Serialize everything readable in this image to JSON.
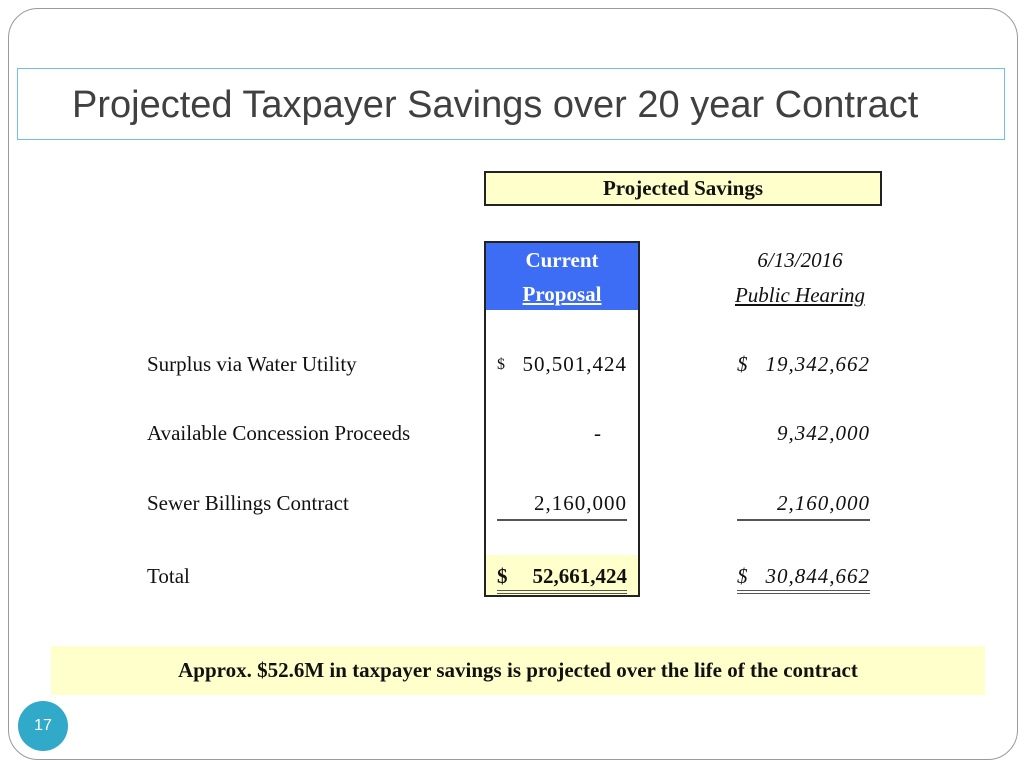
{
  "slide": {
    "title": "Projected Taxpayer Savings over 20 year Contract",
    "page_number": "17",
    "note": "Approx. $52.6M in taxpayer savings is projected over the life of the contract"
  },
  "table": {
    "group_header": "Projected Savings",
    "columns": [
      {
        "line1": "Current",
        "line2": "Proposal"
      },
      {
        "line1": "6/13/2016",
        "line2": "Public Hearing"
      }
    ],
    "rows": [
      {
        "label": "Surplus via Water Utility",
        "current_symbol": "$",
        "current": "50,501,424",
        "hearing_symbol": "$",
        "hearing": "19,342,662"
      },
      {
        "label": "Available Concession Proceeds",
        "current": "-",
        "hearing": "9,342,000"
      },
      {
        "label": "Sewer Billings Contract",
        "current": "2,160,000",
        "hearing": "2,160,000"
      },
      {
        "label": "Total",
        "current_symbol": "$",
        "current": "52,661,424",
        "hearing_symbol": "$",
        "hearing": "30,844,662"
      }
    ]
  },
  "colors": {
    "accent_blue": "#3d6cf5",
    "highlight_yellow": "#ffffcc",
    "title_border": "#6ec3dc",
    "page_badge": "#31a9c9"
  }
}
